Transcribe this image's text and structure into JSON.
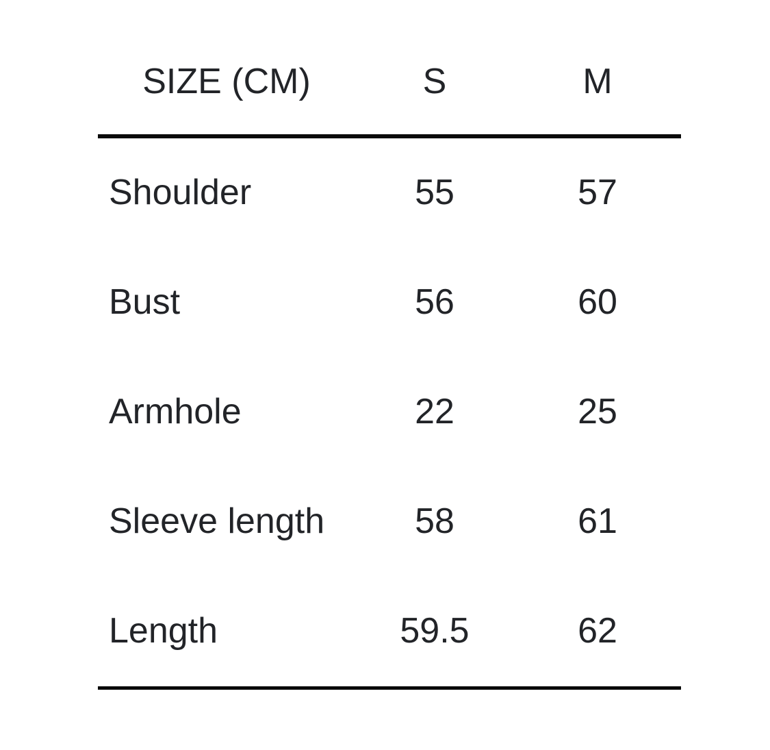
{
  "page": {
    "background_color": "#ffffff",
    "text_color": "#222428",
    "rule_color": "#0a0a0a"
  },
  "chart_data": {
    "type": "table",
    "title": "SIZE (CM)",
    "columns": [
      "SIZE (CM)",
      "S",
      "M"
    ],
    "rows": [
      {
        "label": "Shoulder",
        "values": [
          55,
          57
        ]
      },
      {
        "label": "Bust",
        "values": [
          56,
          60
        ]
      },
      {
        "label": "Armhole",
        "values": [
          22,
          25
        ]
      },
      {
        "label": "Sleeve length",
        "values": [
          58,
          61
        ]
      },
      {
        "label": "Length",
        "values": [
          59.5,
          62
        ]
      }
    ],
    "layout": {
      "header_rule": "thick",
      "bottom_rule": "thin",
      "label_align": "left",
      "value_align": "center"
    }
  }
}
